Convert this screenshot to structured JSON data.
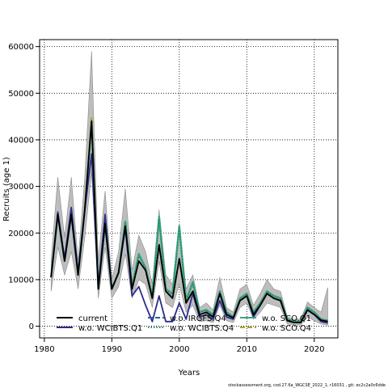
{
  "chart_data": {
    "type": "line",
    "xlabel": "Years",
    "ylabel": "Recruits (age 1)",
    "xlim": [
      1979.3,
      2023.5
    ],
    "ylim": [
      -2500,
      61500
    ],
    "xticks": [
      1980,
      1990,
      2000,
      2010,
      2020
    ],
    "yticks": [
      0,
      10000,
      20000,
      30000,
      40000,
      50000,
      60000
    ],
    "grid": true,
    "legend_position": "bottom-left",
    "footer": "stockassessment.org, cod.27.6a_WGCSE_2022_1, r16031 , git: ec2c2a0c6dde",
    "x": [
      1981,
      1982,
      1983,
      1984,
      1985,
      1986,
      1987,
      1988,
      1989,
      1990,
      1991,
      1992,
      1993,
      1994,
      1995,
      1996,
      1997,
      1998,
      1999,
      2000,
      2001,
      2002,
      2003,
      2004,
      2005,
      2006,
      2007,
      2008,
      2009,
      2010,
      2011,
      2012,
      2013,
      2014,
      2015,
      2016,
      2017,
      2018,
      2019,
      2020,
      2021,
      2022
    ],
    "band": {
      "name": "confidence interval",
      "color": "#bdbdbd",
      "upper": [
        14000,
        32000,
        19000,
        32000,
        14000,
        32000,
        59000,
        14000,
        29000,
        10000,
        16000,
        29500,
        12000,
        19500,
        16000,
        9000,
        25000,
        11000,
        9000,
        22000,
        8000,
        11000,
        4000,
        5000,
        3500,
        10500,
        4000,
        3000,
        8000,
        9000,
        4500,
        7000,
        10000,
        8000,
        7500,
        2000,
        1500,
        1500,
        5200,
        4000,
        3000,
        8300
      ],
      "lower": [
        7500,
        17000,
        11000,
        16000,
        8000,
        19000,
        33000,
        6000,
        17000,
        6000,
        8500,
        15500,
        6000,
        10000,
        9000,
        4000,
        14000,
        5000,
        4000,
        9000,
        3000,
        4500,
        1000,
        1200,
        800,
        4500,
        1200,
        800,
        4000,
        5000,
        1500,
        3000,
        5000,
        4500,
        4000,
        500,
        300,
        300,
        2000,
        1200,
        500,
        200
      ]
    },
    "series": [
      {
        "name": "current",
        "color": "#000000",
        "style": "solid",
        "values": [
          10500,
          24000,
          14000,
          24000,
          11000,
          25000,
          44000,
          8000,
          22000,
          8000,
          11500,
          21500,
          8000,
          14000,
          12000,
          6000,
          17500,
          7500,
          6000,
          14500,
          5000,
          7500,
          2500,
          3000,
          2000,
          7000,
          2500,
          1800,
          5500,
          6500,
          2500,
          4500,
          7000,
          6000,
          5500,
          1200,
          800,
          800,
          3500,
          2500,
          1300,
          1000
        ]
      },
      {
        "name": "w.o. WCIBTS.Q1",
        "color": "#2b2b8c",
        "style": "solid",
        "values": [
          10500,
          24500,
          14500,
          25500,
          11500,
          25000,
          37000,
          8500,
          24000,
          8000,
          11500,
          21000,
          6500,
          8500,
          4500,
          1000,
          6500,
          1000,
          1000,
          5000,
          1500,
          7000,
          2000,
          2500,
          1500,
          5500,
          2000,
          1500,
          5500,
          6500,
          2000,
          4500,
          7000,
          6000,
          5500,
          1200,
          800,
          800,
          3500,
          2500,
          1000,
          700
        ]
      },
      {
        "name": "w.o. IRGFS.Q4",
        "color": "#2f5d9e",
        "style": "dashed",
        "values": [
          10500,
          24000,
          14000,
          24000,
          11000,
          25000,
          44000,
          8000,
          22000,
          8000,
          11500,
          21500,
          8000,
          14000,
          12000,
          6000,
          17500,
          7500,
          6000,
          14500,
          5000,
          7500,
          2500,
          3000,
          2000,
          7000,
          2500,
          1800,
          5500,
          6500,
          2500,
          4500,
          7000,
          6000,
          5500,
          1200,
          800,
          800,
          3500,
          2500,
          1300,
          1000
        ]
      },
      {
        "name": "w.o. WCIBTS.Q4",
        "color": "#2a8a6c",
        "style": "dotted",
        "values": [
          10500,
          24000,
          14000,
          24000,
          11000,
          25000,
          44000,
          8000,
          22000,
          8000,
          11500,
          22000,
          8500,
          15000,
          12500,
          6500,
          23000,
          8000,
          6500,
          21000,
          5500,
          9000,
          3000,
          3500,
          2500,
          7500,
          3000,
          2000,
          6000,
          7000,
          3000,
          5000,
          7500,
          6500,
          6000,
          1500,
          1000,
          1000,
          4000,
          3000,
          1500,
          1200
        ]
      },
      {
        "name": "w.o. SCO.Q1",
        "color": "#3aa582",
        "style": "solid",
        "values": [
          10500,
          24000,
          14000,
          24000,
          11000,
          25000,
          44000,
          8000,
          22000,
          8000,
          11500,
          22500,
          8500,
          15500,
          12500,
          6500,
          23500,
          8000,
          7000,
          21500,
          5500,
          9500,
          3000,
          3500,
          2500,
          7500,
          3000,
          2000,
          6000,
          7000,
          3000,
          5000,
          7500,
          6500,
          6000,
          1500,
          1000,
          1000,
          4000,
          3000,
          1500,
          1200
        ]
      },
      {
        "name": "w.o. SCO.Q4",
        "color": "#b3a124",
        "style": "dashed",
        "values": [
          10500,
          24000,
          14000,
          24000,
          11000,
          25500,
          45000,
          8000,
          22500,
          8000,
          11500,
          21500,
          8000,
          14000,
          12000,
          6000,
          17000,
          7500,
          6000,
          14000,
          5000,
          7500,
          2500,
          3000,
          2000,
          7000,
          2500,
          1800,
          5500,
          6500,
          2500,
          4500,
          7000,
          6000,
          5500,
          1200,
          800,
          800,
          3500,
          2500,
          1300,
          1000
        ]
      }
    ]
  }
}
